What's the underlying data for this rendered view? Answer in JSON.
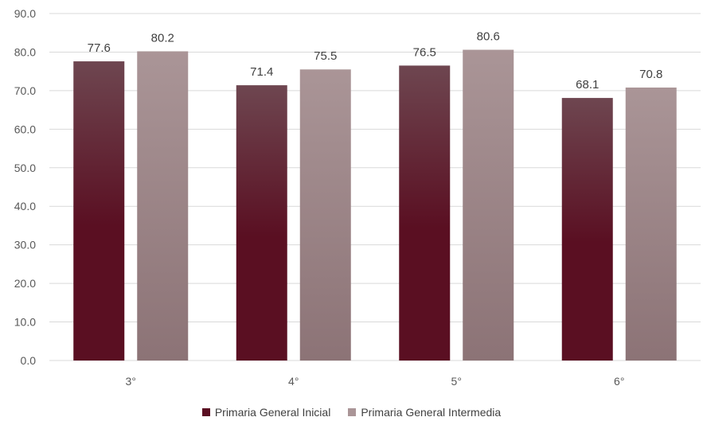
{
  "chart_data": {
    "type": "bar",
    "categories": [
      "3°",
      "4°",
      "5°",
      "6°"
    ],
    "series": [
      {
        "name": "Primaria General Inicial",
        "values": [
          77.6,
          71.4,
          76.5,
          68.1
        ],
        "color_top": "#6e4650",
        "color_bottom": "#5a0f22"
      },
      {
        "name": "Primaria General Intermedia",
        "values": [
          80.2,
          75.5,
          80.6,
          70.8
        ],
        "color_top": "#aa9597",
        "color_bottom": "#8c7376"
      }
    ],
    "ylim": [
      0,
      90
    ],
    "yticks": [
      "0.0",
      "10.0",
      "20.0",
      "30.0",
      "40.0",
      "50.0",
      "60.0",
      "70.0",
      "80.0",
      "90.0"
    ],
    "grid": true,
    "legend_position": "bottom",
    "data_labels": true
  }
}
